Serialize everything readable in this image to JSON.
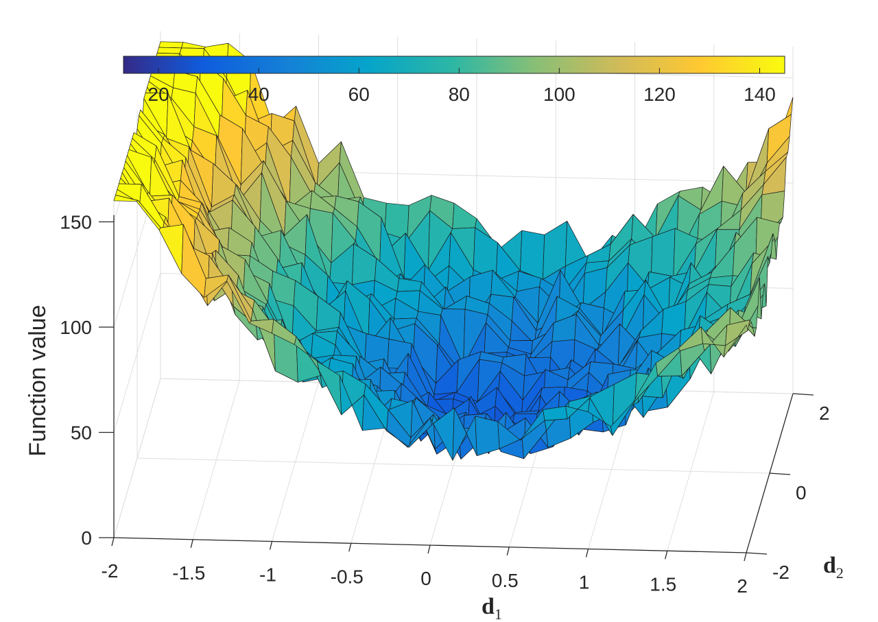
{
  "chart_data": {
    "type": "surface",
    "title": "",
    "xlabel": "d",
    "xlabel_sub": "1",
    "ylabel": "d",
    "ylabel_sub": "2",
    "zlabel": "Function value",
    "xlim": [
      -2,
      2
    ],
    "ylim": [
      -2,
      2
    ],
    "zlim": [
      0,
      165
    ],
    "x_ticks": [
      "-2",
      "-1.5",
      "-1",
      "-0.5",
      "0",
      "0.5",
      "1",
      "1.5",
      "2"
    ],
    "y_ticks": [
      "-2",
      "0",
      "2"
    ],
    "z_ticks": [
      "0",
      "50",
      "100",
      "150"
    ],
    "grid": true,
    "colormap": "parula",
    "colorbar": {
      "location": "top",
      "range": [
        13,
        145
      ],
      "ticks": [
        "20",
        "40",
        "60",
        "80",
        "100",
        "120",
        "140"
      ]
    },
    "surface": {
      "description_model": "noisy bowl, approx. f = 40 + 25*(d1-0.3)^2 + 5*(d2)^2 + noise",
      "grid_points": 28,
      "min_value": 20,
      "max_value": 160
    }
  }
}
